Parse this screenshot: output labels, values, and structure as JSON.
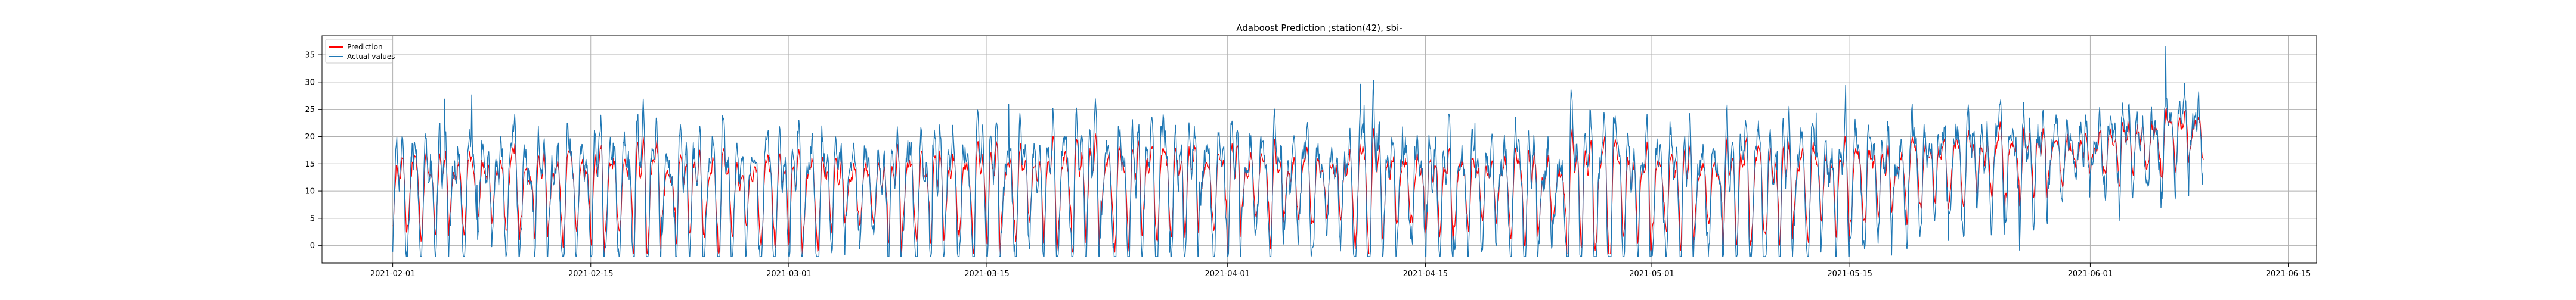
{
  "chart_data": {
    "type": "line",
    "title": "Adaboost Prediction ;station(42), sbi-",
    "xlabel": "",
    "ylabel": "",
    "x_start": "2021-02-01",
    "x_end": "2021-06-09",
    "xlim": [
      "2021-01-27",
      "2021-06-17"
    ],
    "ylim": [
      -3.2,
      38.5
    ],
    "x_tick_labels": [
      "2021-02-01",
      "2021-02-15",
      "2021-03-01",
      "2021-03-15",
      "2021-04-01",
      "2021-04-15",
      "2021-05-01",
      "2021-05-15",
      "2021-06-01",
      "2021-06-15"
    ],
    "y_ticks": [
      0,
      5,
      10,
      15,
      20,
      25,
      30,
      35
    ],
    "grid": true,
    "legend_position": "upper-left",
    "sampling": "hourly",
    "series": [
      {
        "name": "Prediction",
        "color": "#ff0000"
      },
      {
        "name": "Actual values",
        "color": "#1f77b4"
      }
    ],
    "mean_level": [
      {
        "date": "2021-02-01",
        "value": 11
      },
      {
        "date": "2021-02-15",
        "value": 11
      },
      {
        "date": "2021-03-01",
        "value": 10
      },
      {
        "date": "2021-03-15",
        "value": 11
      },
      {
        "date": "2021-04-01",
        "value": 12
      },
      {
        "date": "2021-04-15",
        "value": 11
      },
      {
        "date": "2021-05-01",
        "value": 11
      },
      {
        "date": "2021-05-15",
        "value": 12
      },
      {
        "date": "2021-05-25",
        "value": 16
      },
      {
        "date": "2021-06-01",
        "value": 17
      },
      {
        "date": "2021-06-09",
        "value": 21
      }
    ],
    "amplitude": [
      {
        "date": "2021-02-01",
        "value": 11
      },
      {
        "date": "2021-03-01",
        "value": 12
      },
      {
        "date": "2021-04-01",
        "value": 12
      },
      {
        "date": "2021-05-01",
        "value": 12
      },
      {
        "date": "2021-05-20",
        "value": 9
      },
      {
        "date": "2021-06-01",
        "value": 7
      },
      {
        "date": "2021-06-09",
        "value": 6
      }
    ]
  }
}
